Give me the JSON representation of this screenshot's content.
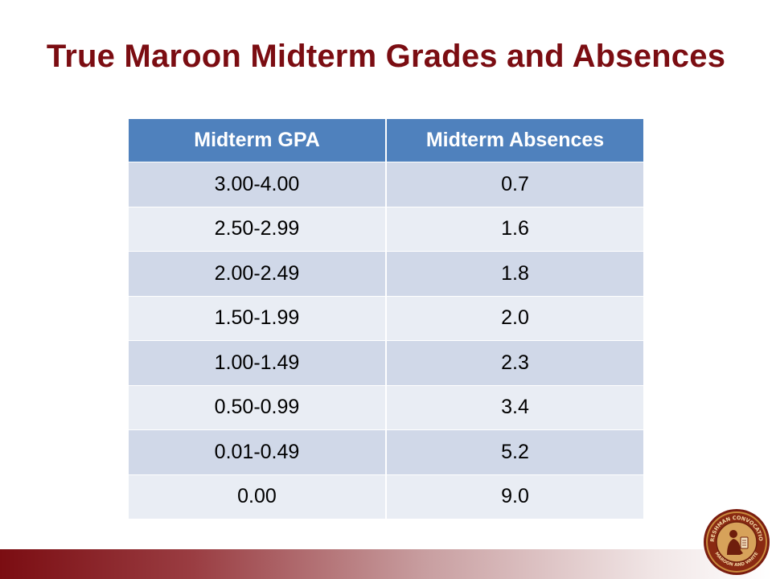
{
  "slide": {
    "title": "True Maroon Midterm Grades and Absences"
  },
  "table": {
    "headers": [
      "Midterm GPA",
      "Midterm Absences"
    ],
    "rows": [
      [
        "3.00-4.00",
        "0.7"
      ],
      [
        "2.50-2.99",
        "1.6"
      ],
      [
        "2.00-2.49",
        "1.8"
      ],
      [
        "1.50-1.99",
        "2.0"
      ],
      [
        "1.00-1.49",
        "2.3"
      ],
      [
        "0.50-0.99",
        "3.4"
      ],
      [
        "0.01-0.49",
        "5.2"
      ],
      [
        "0.00",
        "9.0"
      ]
    ]
  },
  "seal": {
    "text": "FRESHMAN CONVOCATION · MAROON AND WHITE"
  },
  "colors": {
    "title": "#7b0d12",
    "header_bg": "#4f81bd",
    "row_odd": "#d0d8e8",
    "row_even": "#e9edf4",
    "bar_start": "#7b0d12"
  }
}
